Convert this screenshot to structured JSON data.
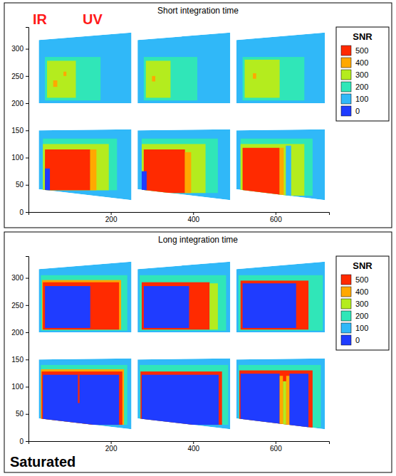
{
  "chart_data": [
    {
      "type": "heatmap",
      "title": "Short integration time",
      "xlim": [
        0,
        730
      ],
      "ylim": [
        0,
        340
      ],
      "xticks": [
        200,
        400,
        600
      ],
      "yticks": [
        0,
        50,
        100,
        150,
        200,
        250,
        300
      ],
      "annotations": [
        "IR",
        "UV"
      ],
      "colorbar": {
        "title": "SNR",
        "ticks": [
          0,
          100,
          200,
          300,
          400,
          500
        ],
        "colors": [
          "#1f3cff",
          "#30b8f8",
          "#30e6b8",
          "#b4ec1e",
          "#ffa800",
          "#ff2a00"
        ]
      },
      "images": [
        {
          "outline": {
            "x": [
              25,
              250,
              250,
              25
            ],
            "y": [
              200,
              200,
              330,
              316
            ]
          },
          "value": 100,
          "cells": [
            {
              "x": [
                40,
                175
              ],
              "y": [
                205,
                285
              ],
              "value": 200
            },
            {
              "x": [
                45,
                115
              ],
              "y": [
                210,
                278
              ],
              "value": 300
            },
            {
              "x": [
                60,
                70
              ],
              "y": [
                230,
                242
              ],
              "value": 400
            },
            {
              "x": [
                85,
                92
              ],
              "y": [
                250,
                258
              ],
              "value": 400
            }
          ]
        },
        {
          "outline": {
            "x": [
              265,
              490,
              490,
              265
            ],
            "y": [
              200,
              200,
              330,
              316
            ]
          },
          "value": 100,
          "cells": [
            {
              "x": [
                280,
                410
              ],
              "y": [
                205,
                285
              ],
              "value": 200
            },
            {
              "x": [
                285,
                345
              ],
              "y": [
                210,
                278
              ],
              "value": 300
            },
            {
              "x": [
                300,
                308
              ],
              "y": [
                240,
                250
              ],
              "value": 400
            }
          ]
        },
        {
          "outline": {
            "x": [
              505,
              720,
              720,
              505
            ],
            "y": [
              200,
              200,
              330,
              316
            ]
          },
          "value": 100,
          "cells": [
            {
              "x": [
                520,
                670
              ],
              "y": [
                205,
                285
              ],
              "value": 200
            },
            {
              "x": [
                525,
                610
              ],
              "y": [
                210,
                280
              ],
              "value": 300
            },
            {
              "x": [
                545,
                553
              ],
              "y": [
                245,
                255
              ],
              "value": 400
            }
          ]
        },
        {
          "outline": {
            "x": [
              25,
              250,
              250,
              25
            ],
            "y": [
              42,
              22,
              152,
              150
            ]
          },
          "value": 100,
          "cells": [
            {
              "x": [
                35,
                215
              ],
              "y": [
                40,
                135
              ],
              "value": 200
            },
            {
              "x": [
                35,
                195
              ],
              "y": [
                40,
                125
              ],
              "value": 300
            },
            {
              "x": [
                40,
                150
              ],
              "y": [
                40,
                115
              ],
              "value": 500
            },
            {
              "x": [
                40,
                52
              ],
              "y": [
                40,
                80
              ],
              "value": 0
            },
            {
              "x": [
                150,
                165
              ],
              "y": [
                40,
                115
              ],
              "value": 400
            }
          ]
        },
        {
          "outline": {
            "x": [
              265,
              490,
              490,
              265
            ],
            "y": [
              42,
              22,
              152,
              150
            ]
          },
          "value": 100,
          "cells": [
            {
              "x": [
                275,
                460
              ],
              "y": [
                35,
                135
              ],
              "value": 200
            },
            {
              "x": [
                275,
                430
              ],
              "y": [
                35,
                125
              ],
              "value": 300
            },
            {
              "x": [
                280,
                380
              ],
              "y": [
                35,
                115
              ],
              "value": 500
            },
            {
              "x": [
                275,
                287
              ],
              "y": [
                40,
                75
              ],
              "value": 0
            },
            {
              "x": [
                380,
                395
              ],
              "y": [
                35,
                110
              ],
              "value": 400
            }
          ]
        },
        {
          "outline": {
            "x": [
              505,
              720,
              720,
              505
            ],
            "y": [
              42,
              22,
              152,
              150
            ]
          },
          "value": 100,
          "cells": [
            {
              "x": [
                515,
                690
              ],
              "y": [
                30,
                135
              ],
              "value": 200
            },
            {
              "x": [
                515,
                670
              ],
              "y": [
                30,
                125
              ],
              "value": 300
            },
            {
              "x": [
                520,
                610
              ],
              "y": [
                30,
                118
              ],
              "value": 500
            },
            {
              "x": [
                610,
                620
              ],
              "y": [
                30,
                118
              ],
              "value": 400
            },
            {
              "x": [
                625,
                638
              ],
              "y": [
                25,
                122
              ],
              "value": 100
            }
          ]
        }
      ]
    },
    {
      "type": "heatmap",
      "title": "Long integration time",
      "xlim": [
        0,
        730
      ],
      "ylim": [
        0,
        340
      ],
      "xticks": [
        200,
        400,
        600
      ],
      "yticks": [
        0,
        50,
        100,
        150,
        200,
        250,
        300
      ],
      "annotations": [
        "Saturated"
      ],
      "colorbar": {
        "title": "SNR",
        "ticks": [
          0,
          100,
          200,
          300,
          400,
          500
        ],
        "colors": [
          "#1f3cff",
          "#30b8f8",
          "#30e6b8",
          "#b4ec1e",
          "#ffa800",
          "#ff2a00"
        ]
      },
      "images": [
        {
          "outline": {
            "x": [
              25,
              250,
              250,
              25
            ],
            "y": [
              200,
              200,
              330,
              316
            ]
          },
          "value": 100,
          "cells": [
            {
              "x": [
                30,
                240
              ],
              "y": [
                203,
                305
              ],
              "value": 200
            },
            {
              "x": [
                33,
                225
              ],
              "y": [
                205,
                296
              ],
              "value": 400
            },
            {
              "x": [
                35,
                220
              ],
              "y": [
                205,
                292
              ],
              "value": 500
            },
            {
              "x": [
                40,
                150
              ],
              "y": [
                208,
                285
              ],
              "value": 0
            }
          ]
        },
        {
          "outline": {
            "x": [
              265,
              490,
              490,
              265
            ],
            "y": [
              200,
              200,
              330,
              316
            ]
          },
          "value": 100,
          "cells": [
            {
              "x": [
                270,
                480
              ],
              "y": [
                203,
                305
              ],
              "value": 200
            },
            {
              "x": [
                275,
                440
              ],
              "y": [
                205,
                292
              ],
              "value": 500
            },
            {
              "x": [
                280,
                390
              ],
              "y": [
                208,
                285
              ],
              "value": 0
            },
            {
              "x": [
                440,
                460
              ],
              "y": [
                205,
                290
              ],
              "value": 300
            }
          ]
        },
        {
          "outline": {
            "x": [
              505,
              720,
              720,
              505
            ],
            "y": [
              200,
              200,
              330,
              316
            ]
          },
          "value": 100,
          "cells": [
            {
              "x": [
                510,
                715
              ],
              "y": [
                203,
                305
              ],
              "value": 200
            },
            {
              "x": [
                515,
                680
              ],
              "y": [
                205,
                295
              ],
              "value": 500
            },
            {
              "x": [
                520,
                650
              ],
              "y": [
                208,
                290
              ],
              "value": 0
            }
          ]
        },
        {
          "outline": {
            "x": [
              25,
              250,
              250,
              25
            ],
            "y": [
              42,
              22,
              152,
              150
            ]
          },
          "value": 100,
          "cells": [
            {
              "x": [
                30,
                240
              ],
              "y": [
                30,
                140
              ],
              "value": 200
            },
            {
              "x": [
                30,
                232
              ],
              "y": [
                30,
                132
              ],
              "value": 400
            },
            {
              "x": [
                32,
                228
              ],
              "y": [
                30,
                128
              ],
              "value": 500
            },
            {
              "x": [
                35,
                220
              ],
              "y": [
                30,
                122
              ],
              "value": 0
            },
            {
              "x": [
                120,
                124
              ],
              "y": [
                70,
                122
              ],
              "value": 500
            }
          ]
        },
        {
          "outline": {
            "x": [
              265,
              490,
              490,
              265
            ],
            "y": [
              42,
              22,
              152,
              150
            ]
          },
          "value": 100,
          "cells": [
            {
              "x": [
                270,
                485
              ],
              "y": [
                30,
                140
              ],
              "value": 200
            },
            {
              "x": [
                272,
                470
              ],
              "y": [
                30,
                128
              ],
              "value": 500
            },
            {
              "x": [
                275,
                462
              ],
              "y": [
                30,
                122
              ],
              "value": 0
            }
          ]
        },
        {
          "outline": {
            "x": [
              505,
              720,
              720,
              505
            ],
            "y": [
              42,
              22,
              152,
              150
            ]
          },
          "value": 100,
          "cells": [
            {
              "x": [
                510,
                710
              ],
              "y": [
                25,
                140
              ],
              "value": 200
            },
            {
              "x": [
                512,
                690
              ],
              "y": [
                25,
                130
              ],
              "value": 500
            },
            {
              "x": [
                515,
                610
              ],
              "y": [
                25,
                124
              ],
              "value": 0
            },
            {
              "x": [
                610,
                618
              ],
              "y": [
                25,
                120
              ],
              "value": 400
            },
            {
              "x": [
                618,
                626
              ],
              "y": [
                25,
                110
              ],
              "value": 300
            },
            {
              "x": [
                626,
                634
              ],
              "y": [
                25,
                120
              ],
              "value": 400
            },
            {
              "x": [
                634,
                680
              ],
              "y": [
                25,
                124
              ],
              "value": 0
            }
          ]
        }
      ]
    }
  ]
}
